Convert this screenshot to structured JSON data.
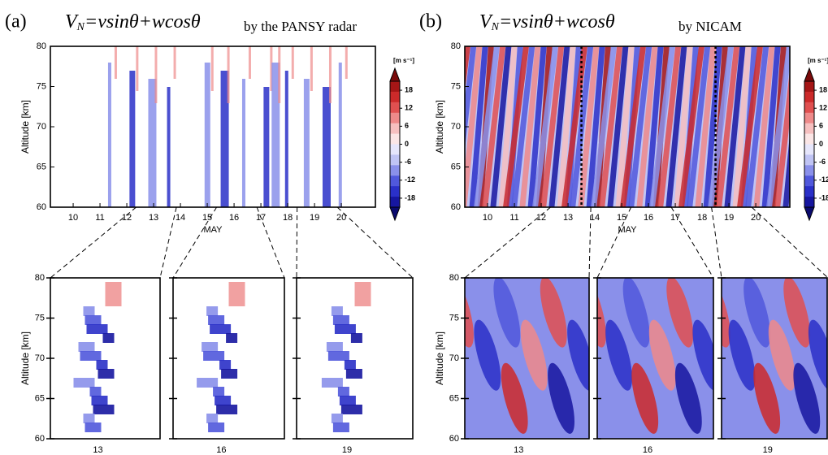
{
  "chart_data": [
    {
      "type": "heatmap",
      "panel_label": "(a)",
      "title_var": "V",
      "title_sub": "N",
      "title_eq": "=vsinθ+wcosθ",
      "subtitle": "by the PANSY radar",
      "ylabel": "Altitude [km]",
      "xlabel": "MAY",
      "xlim": [
        9.15,
        21.27
      ],
      "xticks": [
        10,
        11,
        12,
        13,
        14,
        15,
        16,
        17,
        18,
        19,
        20
      ],
      "ylim": [
        60,
        80
      ],
      "yticks": [
        60,
        65,
        70,
        75,
        80
      ],
      "colorbar_unit": "[m s⁻¹]",
      "clim": [
        -21,
        21
      ],
      "cticks": [
        18,
        12,
        6,
        0,
        -6,
        -12,
        -18
      ],
      "colors": [
        "#7a0a0a",
        "#a51616",
        "#cc2a2a",
        "#e05050",
        "#ee8a8a",
        "#f6c0c0",
        "#fbe6e6",
        "#e6e6fb",
        "#c0c4f4",
        "#8a90ea",
        "#5058dc",
        "#2a30c8",
        "#1616a0",
        "#0a0a6e"
      ],
      "zooms": [
        {
          "xlim": [
            12.35,
            13.85
          ],
          "xticks": [
            13
          ]
        },
        {
          "xlim": [
            15.35,
            16.85
          ],
          "xticks": [
            16
          ]
        },
        {
          "xlim": [
            18.35,
            19.85
          ],
          "xticks": [
            19
          ]
        }
      ]
    },
    {
      "type": "heatmap",
      "panel_label": "(b)",
      "title_var": "V",
      "title_sub": "N",
      "title_eq": "=vsinθ+wcosθ",
      "subtitle": "by NICAM",
      "ylabel": "Altitude [km]",
      "xlabel": "MAY",
      "xlim": [
        9.15,
        21.27
      ],
      "xticks": [
        10,
        11,
        12,
        13,
        14,
        15,
        16,
        17,
        18,
        19,
        20
      ],
      "ylim": [
        60,
        80
      ],
      "yticks": [
        60,
        65,
        70,
        75,
        80
      ],
      "colorbar_unit": "[m s⁻¹]",
      "clim": [
        -21,
        21
      ],
      "cticks": [
        18,
        12,
        6,
        0,
        -6,
        -12,
        -18
      ],
      "colors": [
        "#7a0a0a",
        "#a51616",
        "#cc2a2a",
        "#e05050",
        "#ee8a8a",
        "#f6c0c0",
        "#fbe6e6",
        "#e6e6fb",
        "#c0c4f4",
        "#8a90ea",
        "#5058dc",
        "#2a30c8",
        "#1616a0",
        "#0a0a6e"
      ],
      "zooms": [
        {
          "xlim": [
            12.35,
            13.85
          ],
          "xticks": [
            13
          ]
        },
        {
          "xlim": [
            15.35,
            16.85
          ],
          "xticks": [
            16
          ]
        },
        {
          "xlim": [
            18.35,
            19.85
          ],
          "xticks": [
            19
          ]
        }
      ]
    }
  ]
}
